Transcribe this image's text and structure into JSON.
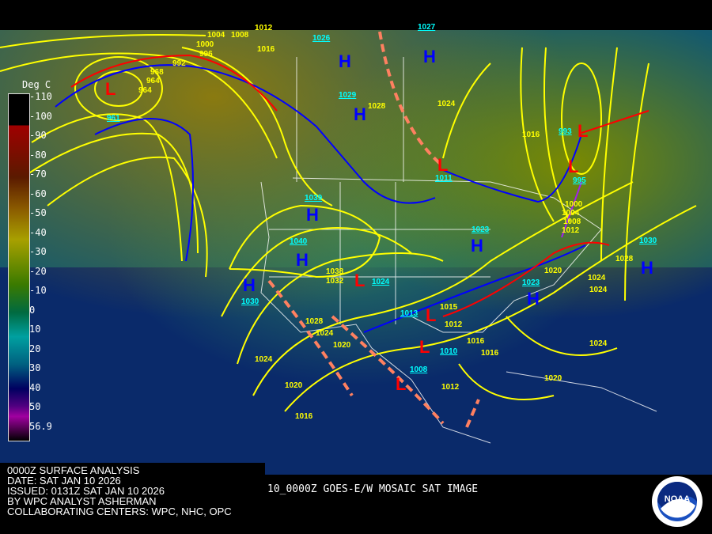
{
  "colorbar": {
    "unit": "Deg C",
    "ticks": [
      "-110",
      "-100",
      "-90",
      "-80",
      "-70",
      "-60",
      "-50",
      "-40",
      "-30",
      "-20",
      "-10",
      "0",
      "10",
      "20",
      "30",
      "40",
      "50",
      "56.9"
    ]
  },
  "highs": [
    {
      "label": "H",
      "pressure": "1026"
    },
    {
      "label": "H",
      "pressure": "1027"
    },
    {
      "label": "H",
      "pressure": "1029"
    },
    {
      "label": "H",
      "pressure": "1039"
    },
    {
      "label": "H",
      "pressure": "1040"
    },
    {
      "label": "H",
      "pressure": "1030"
    },
    {
      "label": "H",
      "pressure": "1023"
    },
    {
      "label": "H",
      "pressure": "1023"
    },
    {
      "label": "H",
      "pressure": "1030"
    }
  ],
  "lows": [
    {
      "label": "L",
      "pressure": "961"
    },
    {
      "label": "L",
      "pressure": "993"
    },
    {
      "label": "L",
      "pressure": "995"
    },
    {
      "label": "L",
      "pressure": "1011"
    },
    {
      "label": "L",
      "pressure": "1013"
    },
    {
      "label": "L",
      "pressure": "1010"
    },
    {
      "label": "L",
      "pressure": "1008"
    },
    {
      "label": "L",
      "pressure": "1024"
    }
  ],
  "isobar_labels": [
    "1004",
    "1008",
    "1012",
    "1016",
    "1000",
    "996",
    "992",
    "968",
    "964",
    "964",
    "1028",
    "1024",
    "1016",
    "1000",
    "1004",
    "1008",
    "1012",
    "1020",
    "1024",
    "1038",
    "1032",
    "1028",
    "1024",
    "1020",
    "1024",
    "1020",
    "1016",
    "1012",
    "1016",
    "1015",
    "1012",
    "1028",
    "1024",
    "1024",
    "1020",
    "1016"
  ],
  "footer": {
    "lines": [
      "0000Z SURFACE ANALYSIS",
      "DATE: SAT JAN 10 2026",
      "ISSUED: 0131Z SAT JAN 10 2026",
      "BY WPC ANALYST ASHERMAN",
      "COLLABORATING CENTERS: WPC, NHC, OPC"
    ],
    "satellite": "10_0000Z GOES-E/W MOSAIC SAT IMAGE"
  },
  "logo": {
    "text": "NOAA"
  },
  "colors": {
    "isobar": "#ffff00",
    "high": "#0000ff",
    "low": "#ff0000",
    "cold_front": "#0000ff",
    "warm_front": "#ff0000",
    "trough": "#ff8060",
    "occluded": "#a020f0",
    "center_value": "#00ffff"
  }
}
